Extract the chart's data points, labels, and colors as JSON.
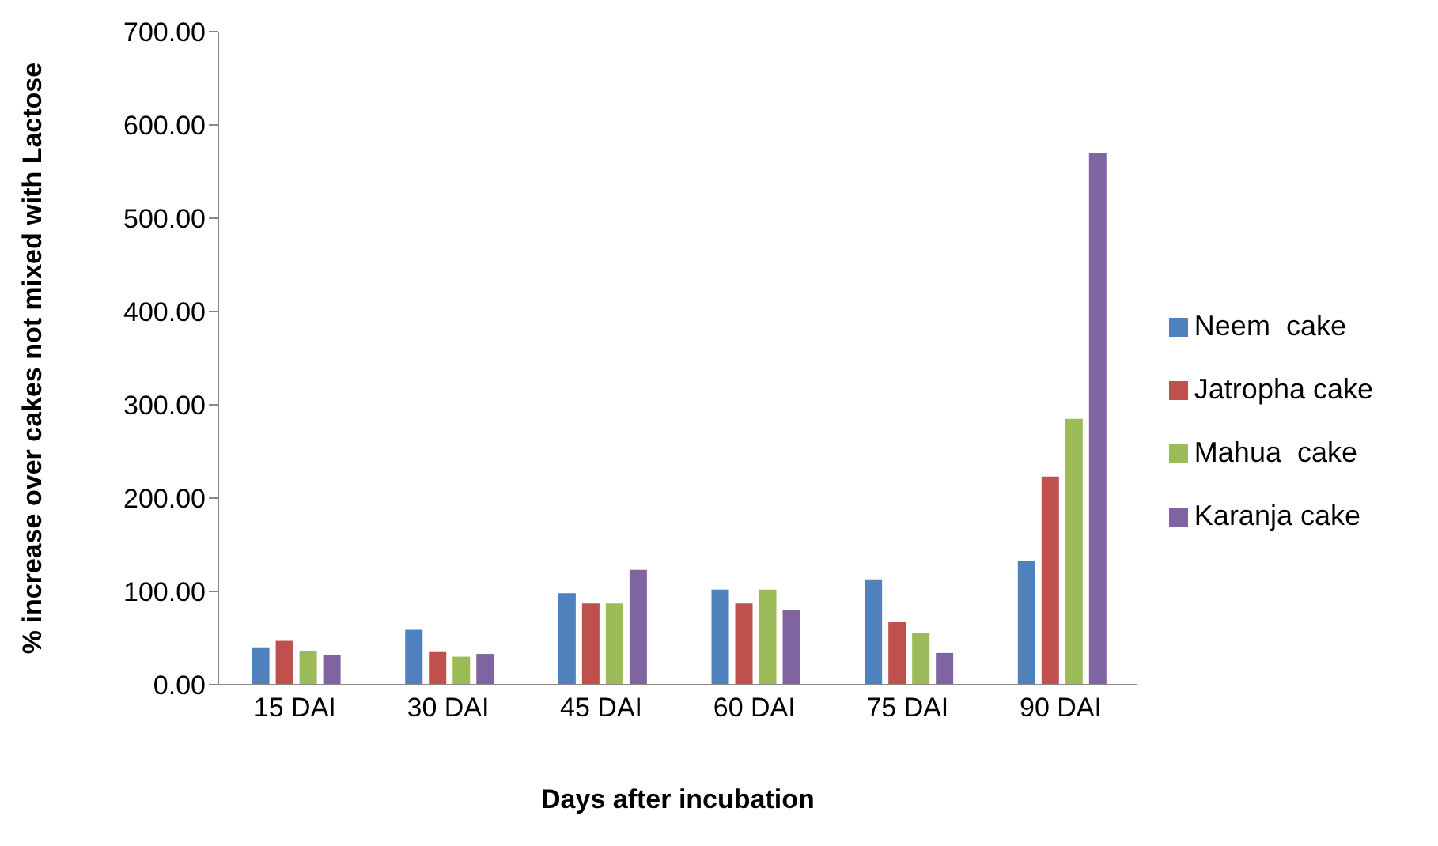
{
  "chart_data": {
    "type": "bar",
    "xlabel": "Days after incubation",
    "ylabel": "% increase over cakes not mixed with Lactose",
    "categories": [
      "15 DAI",
      "30 DAI",
      "45 DAI",
      "60 DAI",
      "75 DAI",
      "90 DAI"
    ],
    "series": [
      {
        "name": "Neem  cake",
        "color": "#4f81bd",
        "values": [
          40,
          59,
          98,
          102,
          113,
          133
        ]
      },
      {
        "name": "Jatropha cake",
        "color": "#c0504d",
        "values": [
          47,
          35,
          87,
          87,
          67,
          223
        ]
      },
      {
        "name": "Mahua  cake",
        "color": "#9bbb59",
        "values": [
          36,
          30,
          87,
          102,
          56,
          285
        ]
      },
      {
        "name": "Karanja cake",
        "color": "#8064a2",
        "values": [
          32,
          33,
          123,
          80,
          34,
          570
        ]
      }
    ],
    "ylim": [
      0,
      700
    ],
    "yticks": [
      {
        "value": 0,
        "label": "0.00"
      },
      {
        "value": 100,
        "label": "100.00"
      },
      {
        "value": 200,
        "label": "200.00"
      },
      {
        "value": 300,
        "label": "300.00"
      },
      {
        "value": 400,
        "label": "400.00"
      },
      {
        "value": 500,
        "label": "500.00"
      },
      {
        "value": 600,
        "label": "600.00"
      },
      {
        "value": 700,
        "label": "700.00"
      }
    ],
    "grid": false,
    "legend": "right"
  }
}
